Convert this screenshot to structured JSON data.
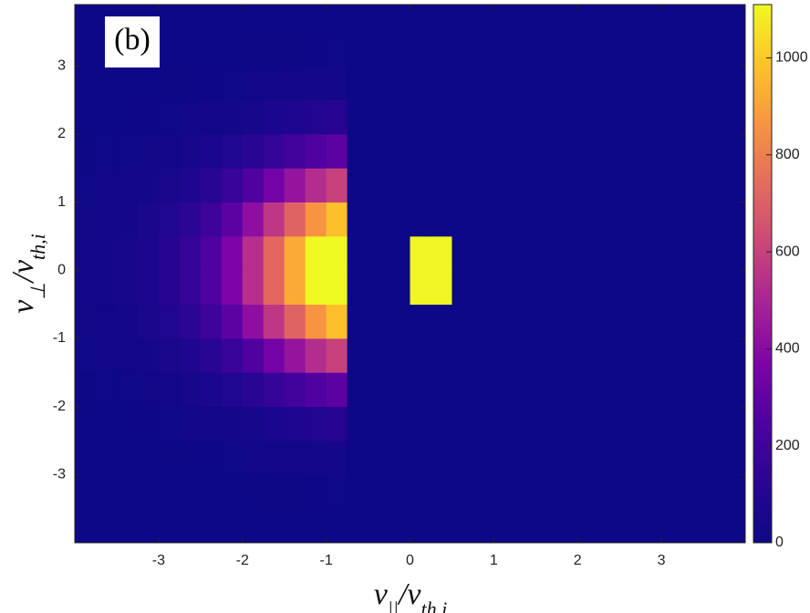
{
  "chart_data": {
    "type": "heatmap",
    "annotation": "(b)",
    "xlabel": [
      {
        "text": "v"
      },
      {
        "text": "||",
        "sub": true
      },
      {
        "text": "/v"
      },
      {
        "text": "th,i",
        "sub": true
      }
    ],
    "ylabel": [
      {
        "text": "v"
      },
      {
        "text": "⊥",
        "sub": true
      },
      {
        "text": "/v"
      },
      {
        "text": "th,i",
        "sub": true
      }
    ],
    "xlim": [
      -4,
      4
    ],
    "ylim": [
      -4,
      3.9
    ],
    "xticks": [
      -3,
      -2,
      -1,
      0,
      1,
      2,
      3
    ],
    "yticks": [
      -3,
      -2,
      -1,
      0,
      1,
      2,
      3
    ],
    "clim": [
      0,
      1110
    ],
    "cticks": [
      0,
      200,
      400,
      600,
      800,
      1000
    ],
    "colormap": [
      "#0d0887",
      "#2a0593",
      "#4c02a1",
      "#7e03a8",
      "#a92395",
      "#cc4778",
      "#e56b5d",
      "#f89441",
      "#fdc328",
      "#f0f921"
    ],
    "xbins": [
      -4,
      -3.75,
      -3.5,
      -3.25,
      -3,
      -2.75,
      -2.5,
      -2.25,
      -2,
      -1.75,
      -1.5,
      -1.25,
      -1,
      -0.75,
      -0.5,
      -0.25,
      0,
      0.25,
      0.5,
      0.75,
      1,
      1.25,
      1.5,
      1.75,
      2,
      2.25,
      2.5,
      2.75,
      3,
      3.25,
      3.5,
      3.75,
      4
    ],
    "ybins": [
      -4,
      -3.5,
      -3,
      -2.5,
      -2,
      -1.5,
      -1,
      -0.5,
      0,
      0.5,
      1,
      1.5,
      2,
      2.5,
      3,
      3.5,
      4
    ],
    "z": [
      [
        0,
        0,
        0,
        0,
        0,
        0,
        0,
        0,
        1,
        1,
        1,
        1,
        1,
        0,
        0,
        0,
        0,
        0,
        0,
        0,
        0,
        0,
        0,
        0,
        0,
        0,
        0,
        0,
        0,
        0,
        0,
        0
      ],
      [
        0,
        0,
        0,
        0,
        1,
        1,
        1,
        2,
        3,
        4,
        5,
        6,
        7,
        0,
        0,
        0,
        0,
        0,
        0,
        0,
        0,
        0,
        0,
        0,
        0,
        0,
        0,
        0,
        0,
        0,
        0,
        0
      ],
      [
        0,
        1,
        1,
        2,
        3,
        4,
        6,
        9,
        13,
        17,
        22,
        26,
        30,
        0,
        0,
        0,
        0,
        0,
        0,
        0,
        0,
        0,
        0,
        0,
        0,
        0,
        0,
        0,
        0,
        0,
        0,
        0
      ],
      [
        2,
        2,
        4,
        6,
        9,
        14,
        21,
        30,
        44,
        60,
        76,
        92,
        104,
        0,
        0,
        0,
        0,
        0,
        0,
        0,
        0,
        0,
        0,
        0,
        0,
        0,
        0,
        0,
        0,
        0,
        0,
        0
      ],
      [
        4,
        7,
        10,
        15,
        24,
        37,
        57,
        84,
        121,
        165,
        209,
        253,
        286,
        0,
        0,
        0,
        0,
        0,
        0,
        0,
        0,
        0,
        0,
        0,
        0,
        0,
        0,
        0,
        0,
        0,
        0,
        0
      ],
      [
        9,
        14,
        21,
        32,
        51,
        78,
        120,
        175,
        253,
        345,
        437,
        529,
        598,
        0,
        0,
        0,
        0,
        0,
        0,
        0,
        0,
        0,
        0,
        0,
        0,
        0,
        0,
        0,
        0,
        0,
        0,
        0
      ],
      [
        15,
        23,
        34,
        53,
        83,
        128,
        195,
        285,
        413,
        563,
        713,
        863,
        975,
        0,
        0,
        0,
        0,
        0,
        0,
        0,
        0,
        0,
        0,
        0,
        0,
        0,
        0,
        0,
        0,
        0,
        0,
        0
      ],
      [
        19,
        29,
        44,
        68,
        107,
        165,
        252,
        369,
        534,
        728,
        922,
        1116,
        1261,
        0,
        0,
        0,
        1100,
        1100,
        0,
        0,
        0,
        0,
        0,
        0,
        0,
        0,
        0,
        0,
        0,
        0,
        0,
        0
      ],
      [
        19,
        29,
        44,
        68,
        107,
        165,
        252,
        369,
        534,
        728,
        922,
        1116,
        1261,
        0,
        0,
        0,
        1100,
        1100,
        0,
        0,
        0,
        0,
        0,
        0,
        0,
        0,
        0,
        0,
        0,
        0,
        0,
        0
      ],
      [
        15,
        23,
        34,
        53,
        83,
        128,
        195,
        285,
        413,
        563,
        713,
        863,
        975,
        0,
        0,
        0,
        0,
        0,
        0,
        0,
        0,
        0,
        0,
        0,
        0,
        0,
        0,
        0,
        0,
        0,
        0,
        0
      ],
      [
        9,
        14,
        21,
        32,
        51,
        78,
        120,
        175,
        253,
        345,
        437,
        529,
        598,
        0,
        0,
        0,
        0,
        0,
        0,
        0,
        0,
        0,
        0,
        0,
        0,
        0,
        0,
        0,
        0,
        0,
        0,
        0
      ],
      [
        4,
        7,
        10,
        15,
        24,
        37,
        57,
        84,
        121,
        165,
        209,
        253,
        286,
        0,
        0,
        0,
        0,
        0,
        0,
        0,
        0,
        0,
        0,
        0,
        0,
        0,
        0,
        0,
        0,
        0,
        0,
        0
      ],
      [
        2,
        2,
        4,
        6,
        9,
        14,
        21,
        30,
        44,
        60,
        76,
        92,
        104,
        0,
        0,
        0,
        0,
        0,
        0,
        0,
        0,
        0,
        0,
        0,
        0,
        0,
        0,
        0,
        0,
        0,
        0,
        0
      ],
      [
        0,
        1,
        1,
        2,
        3,
        4,
        6,
        9,
        13,
        17,
        22,
        26,
        30,
        0,
        0,
        0,
        0,
        0,
        0,
        0,
        0,
        0,
        0,
        0,
        0,
        0,
        0,
        0,
        0,
        0,
        0,
        0
      ],
      [
        0,
        0,
        0,
        0,
        1,
        1,
        1,
        2,
        3,
        4,
        5,
        6,
        7,
        0,
        0,
        0,
        0,
        0,
        0,
        0,
        0,
        0,
        0,
        0,
        0,
        0,
        0,
        0,
        0,
        0,
        0,
        0
      ],
      [
        0,
        0,
        0,
        0,
        0,
        0,
        0,
        0,
        1,
        1,
        1,
        1,
        1,
        0,
        0,
        0,
        0,
        0,
        0,
        0,
        0,
        0,
        0,
        0,
        0,
        0,
        0,
        0,
        0,
        0,
        0,
        0
      ]
    ]
  }
}
